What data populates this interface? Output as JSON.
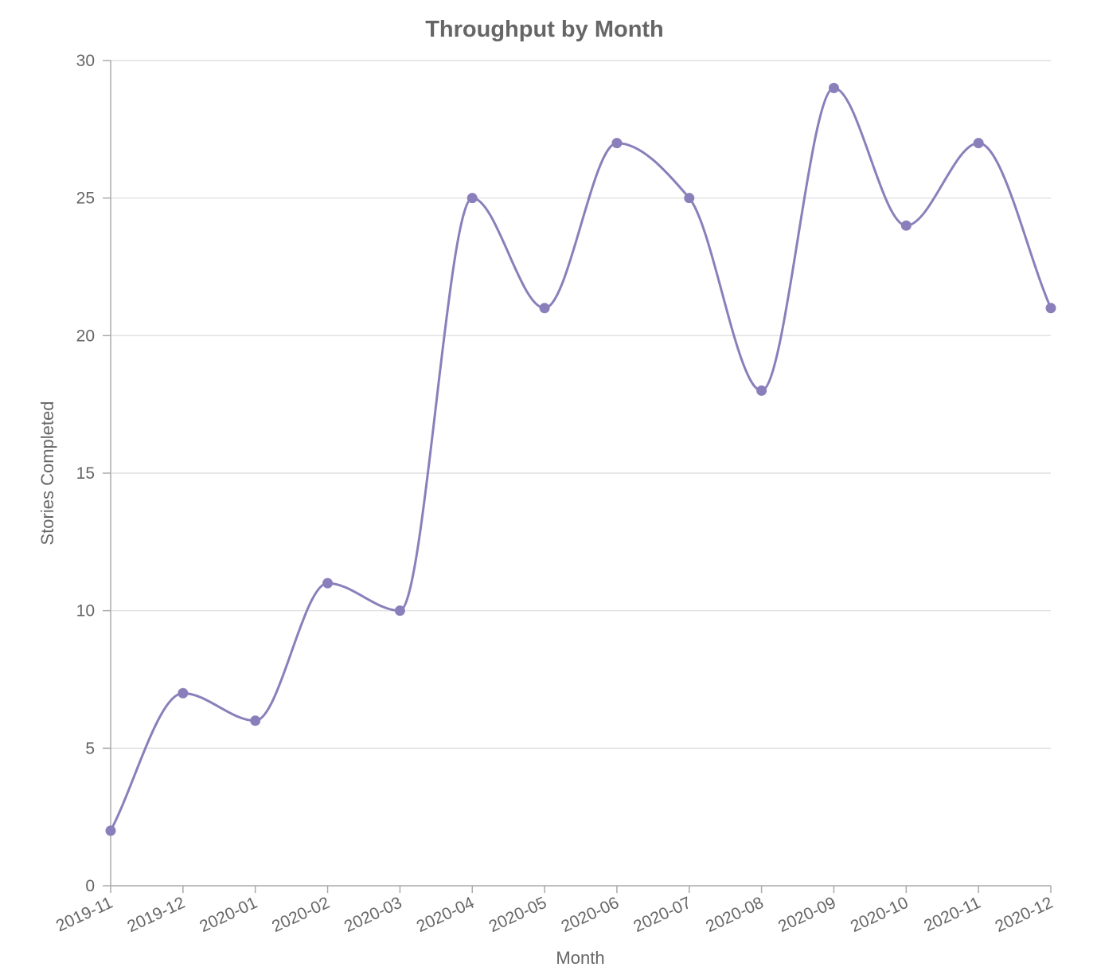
{
  "chart_data": {
    "type": "line",
    "title": "Throughput by Month",
    "xlabel": "Month",
    "ylabel": "Stories Completed",
    "ylim": [
      0,
      30
    ],
    "yticks": [
      0,
      5,
      10,
      15,
      20,
      25,
      30
    ],
    "grid": true,
    "curve": "smooth",
    "categories": [
      "2019-11",
      "2019-12",
      "2020-01",
      "2020-02",
      "2020-03",
      "2020-04",
      "2020-05",
      "2020-06",
      "2020-07",
      "2020-08",
      "2020-09",
      "2020-10",
      "2020-11",
      "2020-12"
    ],
    "series": [
      {
        "name": "Stories Completed",
        "color": "#8a7fba",
        "values": [
          2,
          7,
          6,
          11,
          10,
          25,
          21,
          27,
          25,
          18,
          29,
          24,
          27,
          21
        ]
      }
    ]
  }
}
